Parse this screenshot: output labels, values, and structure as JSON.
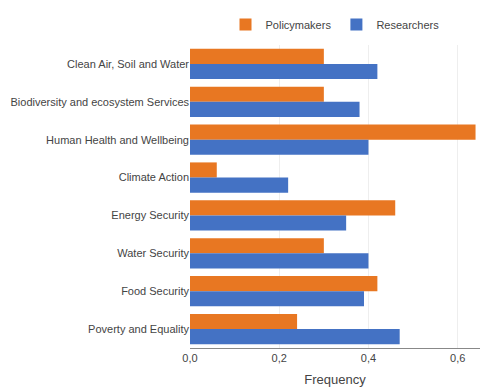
{
  "chart_data": {
    "type": "bar",
    "orientation": "horizontal",
    "categories": [
      "Clean Air, Soil and Water",
      "Biodiversity and ecosystem Services",
      "Human Health and Wellbeing",
      "Climate Action",
      "Energy Security",
      "Water Security",
      "Food Security",
      "Poverty and Equality"
    ],
    "series": [
      {
        "name": "Policymakers",
        "color": "#E87722",
        "values": [
          0.3,
          0.3,
          0.64,
          0.06,
          0.46,
          0.3,
          0.42,
          0.24
        ]
      },
      {
        "name": "Researchers",
        "color": "#4472C4",
        "values": [
          0.42,
          0.38,
          0.4,
          0.22,
          0.35,
          0.4,
          0.39,
          0.47
        ]
      }
    ],
    "xlabel": "Frequency",
    "xlim": [
      0,
      0.65
    ],
    "xticks": [
      {
        "value": 0.0,
        "label": "0,0"
      },
      {
        "value": 0.2,
        "label": "0,2"
      },
      {
        "value": 0.4,
        "label": "0,4"
      },
      {
        "value": 0.6,
        "label": "0,6"
      }
    ],
    "grid": true,
    "legend": "top"
  }
}
